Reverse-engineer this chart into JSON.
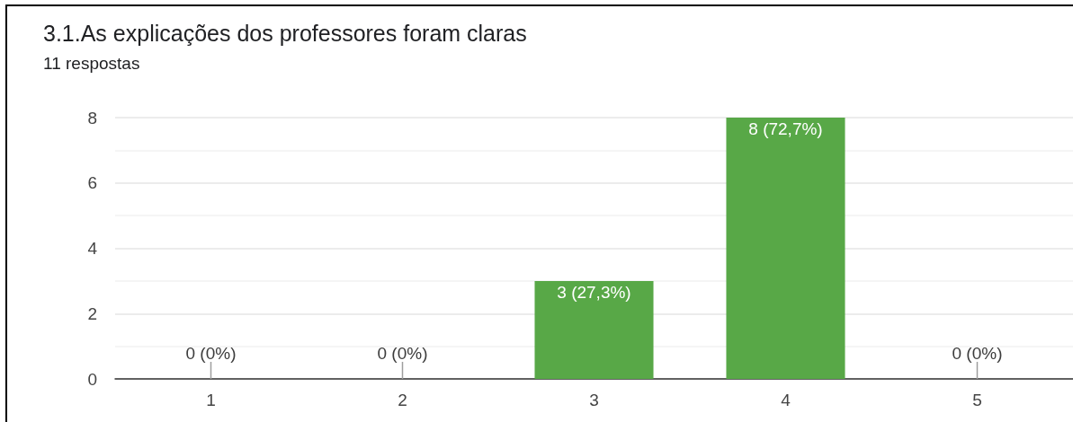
{
  "chart_data": {
    "type": "bar",
    "title": "3.1.As explicações dos professores foram claras",
    "subtitle": "11 respostas",
    "categories": [
      "1",
      "2",
      "3",
      "4",
      "5"
    ],
    "values": [
      0,
      0,
      3,
      8,
      0
    ],
    "color": "#58a847",
    "value_labels": [
      "0 (0%)",
      "0 (0%)",
      "3 (27,3%)",
      "8 (72,7%)",
      "0 (0%)"
    ],
    "ylim": [
      0,
      8
    ],
    "yticks": [
      0,
      2,
      4,
      6,
      8
    ],
    "grid": "y"
  }
}
